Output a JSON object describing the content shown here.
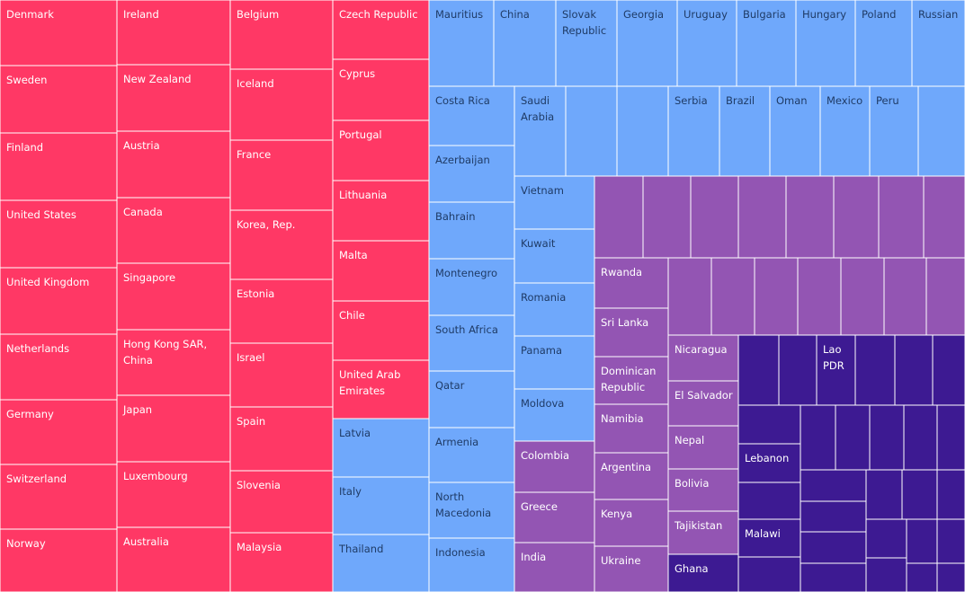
{
  "chart_data": {
    "type": "treemap",
    "colors": {
      "pink": "#ff3865",
      "blue": "#6fa8fb",
      "purple": "#9355b3",
      "indigo": "#3d1a92",
      "pink_text": "#ffffff",
      "blue_text": "#1f3b66",
      "purple_text": "#ffffff",
      "indigo_text": "#ffffff",
      "border": "#ffffff"
    },
    "groups": [
      {
        "name": "pink",
        "countries": [
          "Denmark",
          "Sweden",
          "Finland",
          "United States",
          "United Kingdom",
          "Netherlands",
          "Germany",
          "Switzerland",
          "Norway",
          "Ireland",
          "New Zealand",
          "Austria",
          "Canada",
          "Singapore",
          "Hong Kong SAR, China",
          "Japan",
          "Luxembourg",
          "Australia",
          "Belgium",
          "Iceland",
          "France",
          "Korea, Rep.",
          "Estonia",
          "Israel",
          "Spain",
          "Slovenia",
          "Malaysia",
          "Czech Republic",
          "Cyprus",
          "Portugal",
          "Lithuania",
          "Malta",
          "Chile",
          "United Arab Emirates"
        ]
      },
      {
        "name": "blue",
        "countries": [
          "Latvia",
          "Italy",
          "Thailand",
          "Mauritius",
          "China",
          "Slovak Republic",
          "Georgia",
          "Uruguay",
          "Bulgaria",
          "Hungary",
          "Poland",
          "Russian",
          "Costa Rica",
          "Saudi Arabia",
          "Serbia",
          "Brazil",
          "Oman",
          "Mexico",
          "Peru",
          "Azerbaijan",
          "Bahrain",
          "Montenegro",
          "South Africa",
          "Qatar",
          "Armenia",
          "North Macedonia",
          "Indonesia",
          "Vietnam",
          "Kuwait",
          "Romania",
          "Panama",
          "Moldova"
        ]
      },
      {
        "name": "purple",
        "countries": [
          "Colombia",
          "Greece",
          "India",
          "Rwanda",
          "Sri Lanka",
          "Dominican Republic",
          "Namibia",
          "Argentina",
          "Kenya",
          "Ukraine",
          "Nicaragua",
          "El Salvador",
          "Nepal",
          "Bolivia",
          "Tajikistan"
        ]
      },
      {
        "name": "indigo",
        "countries": [
          "Lao PDR",
          "Lebanon",
          "Malawi",
          "Ghana"
        ]
      }
    ]
  }
}
